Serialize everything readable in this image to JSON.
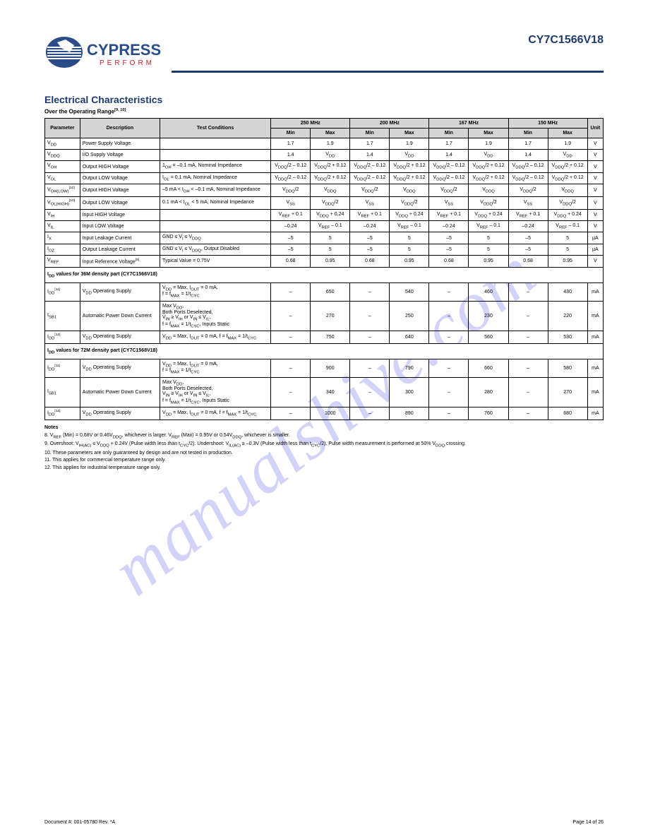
{
  "header": {
    "part_number": "CY7C1566V18",
    "logo_top": "CYPRESS",
    "logo_bottom": "PERFORM"
  },
  "watermark": "manualshive.com",
  "section_title": "Electrical Characteristics",
  "table_caption": "Over the Operating Range",
  "columns": {
    "col1": "Parameter",
    "col2": "Description",
    "col3": "Test Conditions",
    "group1": "250 MHz",
    "group2": "200 MHz",
    "group3": "167 MHz",
    "group4": "150 MHz",
    "minmax_a": "Min",
    "minmax_b": "Max",
    "unit": "Unit"
  },
  "rows": [
    {
      "p": "V<sub>DD</sub>",
      "d": "Power Supply Voltage",
      "t": "",
      "v": [
        "1.7",
        "1.9",
        "1.7",
        "1.9",
        "1.7",
        "1.9",
        "1.7",
        "1.9"
      ],
      "u": "V"
    },
    {
      "p": "V<sub>DDQ</sub>",
      "d": "I/O Supply Voltage",
      "t": "",
      "v": [
        "1.4",
        "V<sub>DD</sub>",
        "1.4",
        "V<sub>DD</sub>",
        "1.4",
        "V<sub>DD</sub>",
        "1.4",
        "V<sub>DD</sub>"
      ],
      "u": "V"
    },
    {
      "p": "V<sub>OH</sub>",
      "d": "Output HIGH Voltage",
      "t": "1<sub>OH</sub> = –0.1 mA, Nominal Impedance",
      "v": [
        "V<sub>DDQ</sub>/2 – 0.12",
        "V<sub>DDQ</sub>/2 + 0.12",
        "V<sub>DDQ</sub>/2 – 0.12",
        "V<sub>DDQ</sub>/2 + 0.12",
        "V<sub>DDQ</sub>/2 – 0.12",
        "V<sub>DDQ</sub>/2 + 0.12",
        "V<sub>DDQ</sub>/2 – 0.12",
        "V<sub>DDQ</sub>/2 + 0.12"
      ],
      "u": "V"
    },
    {
      "p": "V<sub>OL</sub>",
      "d": "Output LOW Voltage",
      "t": "I<sub>OL</sub> = 0.1 mA, Nominal Impedance",
      "v": [
        "V<sub>DDQ</sub>/2 – 0.12",
        "V<sub>DDQ</sub>/2 + 0.12",
        "V<sub>DDQ</sub>/2 – 0.12",
        "V<sub>DDQ</sub>/2 + 0.12",
        "V<sub>DDQ</sub>/2 – 0.12",
        "V<sub>DDQ</sub>/2 + 0.12",
        "V<sub>DDQ</sub>/2 – 0.12",
        "V<sub>DDQ</sub>/2 + 0.12"
      ],
      "u": "V"
    },
    {
      "p": "V<sub>OH(LOW)</sub><sup>[10]</sup>",
      "d": "Output HIGH Voltage",
      "t": "–5 mA < I<sub>OH</sub> < –0.1 mA, Nominal Impedance",
      "v": [
        "V<sub>DDQ</sub>/2",
        "V<sub>DDQ</sub>",
        "V<sub>DDQ</sub>/2",
        "V<sub>DDQ</sub>",
        "V<sub>DDQ</sub>/2",
        "V<sub>DDQ</sub>",
        "V<sub>DDQ</sub>/2",
        "V<sub>DDQ</sub>"
      ],
      "u": "V"
    },
    {
      "p": "V<sub>OL(HIGH)</sub><sup>[10]</sup>",
      "d": "Output LOW Voltage",
      "t": "0.1 mA < I<sub>OL</sub> < 5 mA, Nominal Impedance",
      "v": [
        "V<sub>SS</sub>",
        "V<sub>DDQ</sub>/2",
        "V<sub>SS</sub>",
        "V<sub>DDQ</sub>/2",
        "V<sub>SS</sub>",
        "V<sub>DDQ</sub>/2",
        "V<sub>SS</sub>",
        "V<sub>DDQ</sub>/2"
      ],
      "u": "V"
    },
    {
      "p": "V<sub>IH</sub>",
      "d": "Input HIGH Voltage",
      "t": "",
      "v": [
        "V<sub>REF</sub> + 0.1",
        "V<sub>DDQ</sub> + 0.24",
        "V<sub>REF</sub> + 0.1",
        "V<sub>DDQ</sub> + 0.24",
        "V<sub>REF</sub> + 0.1",
        "V<sub>DDQ</sub> + 0.24",
        "V<sub>REF</sub> + 0.1",
        "V<sub>DDQ</sub> + 0.24"
      ],
      "u": "V"
    },
    {
      "p": "V<sub>IL</sub>",
      "d": "Input LOW Voltage",
      "t": "",
      "v": [
        "–0.24",
        "V<sub>REF</sub> – 0.1",
        "–0.24",
        "V<sub>REF</sub> – 0.1",
        "–0.24",
        "V<sub>REF</sub> – 0.1",
        "–0.24",
        "V<sub>REF</sub> – 0.1"
      ],
      "u": "V"
    },
    {
      "p": "I<sub>X</sub>",
      "d": "Input Leakage Current",
      "t": "GND ≤ V<sub>I</sub> ≤ V<sub>DDQ</sub>",
      "v": [
        "–5",
        "5",
        "–5",
        "5",
        "–5",
        "5",
        "–5",
        "5"
      ],
      "u": "µA"
    },
    {
      "p": "I<sub>OZ</sub>",
      "d": "Output Leakage Current",
      "t": "GND ≤ V<sub>I</sub> ≤ V<sub>DDQ</sub>, Output Disabled",
      "v": [
        "–5",
        "5",
        "–5",
        "5",
        "–5",
        "5",
        "–5",
        "5"
      ],
      "u": "µA"
    },
    {
      "p": "V<sub>REF</sub>",
      "d": "Input Reference Voltage<sup>[8]</sup>",
      "t": "Typical Value = 0.75V",
      "v": [
        "0.68",
        "0.95",
        "0.68",
        "0.95",
        "0.68",
        "0.95",
        "0.68",
        "0.95"
      ],
      "u": "V"
    }
  ],
  "section1": {
    "title": "I<sub>DD</sub> values for 36M density part (CY7C1566V18)",
    "rows": [
      {
        "p": "I<sub>DD</sub><sup>[11]</sup>",
        "d": "V<sub>DD</sub> Operating Supply",
        "t": "V<sub>DD</sub> = Max, I<sub>OUT</sub> = 0 mA,<br>f = f<sub>MAX</sub> = 1/t<sub>CYC</sub>",
        "v": [
          "–",
          "650",
          "–",
          "540",
          "–",
          "460",
          "–",
          "430"
        ],
        "u": "mA"
      },
      {
        "p": "I<sub>SB1</sub>",
        "d": "Automatic Power Down Current",
        "t": "Max V<sub>DD</sub>,<br>Both Ports Deselected,<br>V<sub>IN</sub> ≥ V<sub>IH</sub> or V<sub>IN</sub> ≤ V<sub>IL</sub>,<br>f = f<sub>MAX</sub> = 1/t<sub>CYC</sub>, Inputs Static",
        "v": [
          "–",
          "270",
          "–",
          "250",
          "–",
          "230",
          "–",
          "220"
        ],
        "u": "mA"
      },
      {
        "p": "I<sub>DD</sub><sup>[12]</sup>",
        "d": "V<sub>DD</sub> Operating Supply",
        "t": "V<sub>DD</sub> = Max, I<sub>OUT</sub> = 0 mA, f = f<sub>MAX</sub> = 1/t<sub>CYC</sub>",
        "v": [
          "–",
          "750",
          "–",
          "640",
          "–",
          "560",
          "–",
          "530"
        ],
        "u": "mA"
      }
    ]
  },
  "section2": {
    "title": "I<sub>DD</sub> values for 72M density part (CY7C1568V18)",
    "rows": [
      {
        "p": "I<sub>DD</sub><sup>[11]</sup>",
        "d": "V<sub>DD</sub> Operating Supply",
        "t": "V<sub>DD</sub> = Max, I<sub>OUT</sub> = 0 mA,<br>f = f<sub>MAX</sub> = 1/t<sub>CYC</sub>",
        "v": [
          "–",
          "900",
          "–",
          "790",
          "–",
          "660",
          "–",
          "580"
        ],
        "u": "mA"
      },
      {
        "p": "I<sub>SB1</sub>",
        "d": "Automatic Power Down Current",
        "t": "Max V<sub>DD</sub>,<br>Both Ports Deselected,<br>V<sub>IN</sub> ≥ V<sub>IH</sub> or V<sub>IN</sub> ≤ V<sub>IL</sub>,<br>f = f<sub>MAX</sub> = 1/t<sub>CYC</sub>, Inputs Static",
        "v": [
          "–",
          "340",
          "–",
          "300",
          "–",
          "280",
          "–",
          "270"
        ],
        "u": "mA"
      },
      {
        "p": "I<sub>DD</sub><sup>[12]</sup>",
        "d": "V<sub>DD</sub> Operating Supply",
        "t": "V<sub>DD</sub> = Max, I<sub>OUT</sub> = 0 mA, f = f<sub>MAX</sub> = 1/t<sub>CYC</sub>",
        "v": [
          "–",
          "1000",
          "–",
          "890",
          "–",
          "760",
          "–",
          "680"
        ],
        "u": "mA"
      }
    ]
  },
  "footnotes": {
    "heading": "Notes",
    "items": [
      "8. V<sub>REF</sub> (Min) = 0.68V or 0.46V<sub>DDQ</sub>, whichever is larger. V<sub>REF</sub> (Max) = 0.95V or 0.54V<sub>DDQ</sub>, whichever is smaller.",
      "9. Overshoot: V<sub>IH(AC)</sub> ≤ V<sub>DDQ</sub> + 0.24V (Pulse width less than t<sub>CYC</sub>/2). Undershoot: V<sub>IL(AC)</sub> ≥ –0.3V (Pulse width less than t<sub>CYC</sub>/2). Pulse width measurement is performed at 50% V<sub>DDQ</sub> crossing.",
      "10. These parameters are only guaranteed by design and are not tested in production.",
      "11. This applies for commercial temperature range only.",
      "12. This applies for industrial temperature range only."
    ]
  },
  "footer": {
    "left": "Document #: 001-05780 Rev. *A",
    "center": "",
    "right": "Page 14 of 26"
  },
  "colors": {
    "header_rule": "#1e3b6f",
    "thead_bg": "#d5d5d5",
    "text": "#000000",
    "logo_blue": "#2a4d8a",
    "logo_red": "#c8202c",
    "watermark": "rgba(70,80,230,0.25)"
  }
}
